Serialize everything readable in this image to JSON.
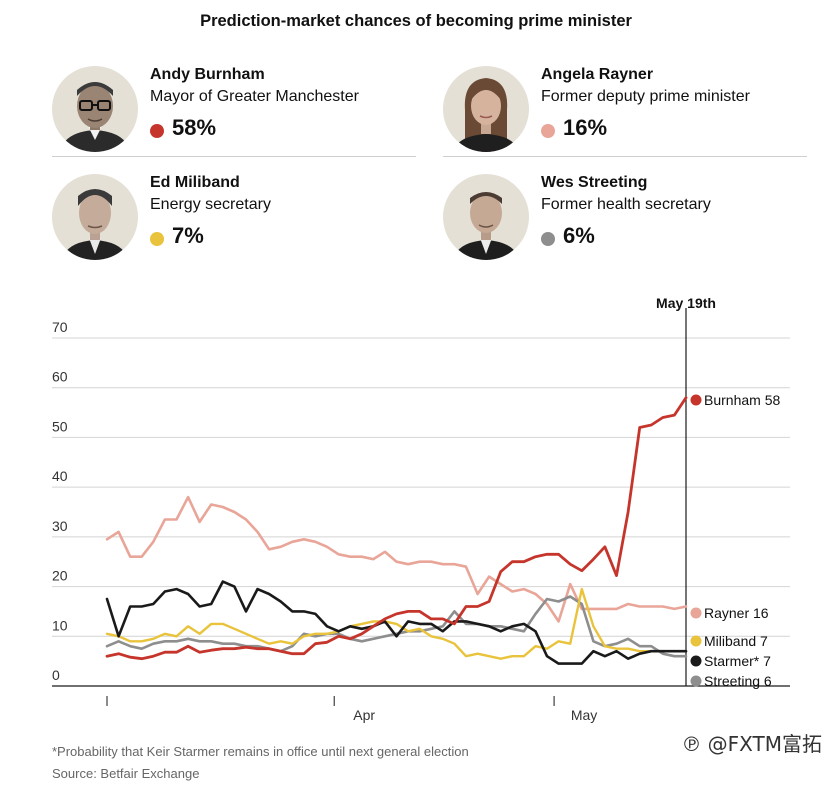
{
  "title": "Prediction-market chances of becoming prime minister",
  "candidates": [
    {
      "name": "Andy Burnham",
      "role": "Mayor of Greater Manchester",
      "pct": "58%",
      "color": "#c6352b"
    },
    {
      "name": "Angela Rayner",
      "role": "Former deputy prime minister",
      "pct": "16%",
      "color": "#e8a598"
    },
    {
      "name": "Ed Miliband",
      "role": "Energy secretary",
      "pct": "7%",
      "color": "#e9c33c"
    },
    {
      "name": "Wes Streeting",
      "role": "Former health secretary",
      "pct": "6%",
      "color": "#8e8e8e"
    }
  ],
  "chart_data": {
    "type": "line",
    "title": "",
    "xlabel": "",
    "ylabel": "",
    "ylim": [
      0,
      70
    ],
    "yticks": [
      "70",
      "60",
      "50",
      "40",
      "30",
      "20",
      "10",
      "0"
    ],
    "yticks_values": [
      70,
      60,
      50,
      40,
      30,
      20,
      10,
      0
    ],
    "x_start": "Mar 1",
    "x_end": "May 19",
    "xticks": [
      {
        "label": "Apr",
        "date": "Apr 1"
      },
      {
        "label": "May",
        "date": "May 1"
      }
    ],
    "marker_label": "May 19th",
    "marker_date": "May 19",
    "grid": true,
    "series": [
      {
        "name": "Burnham",
        "end_label": "Burnham 58",
        "color": "#c6352b",
        "width": 2.8,
        "values": [
          6,
          6.5,
          5.8,
          5.5,
          6,
          6.8,
          6.8,
          8,
          6.8,
          7.2,
          7.5,
          7.5,
          7.8,
          7.5,
          7.5,
          7,
          6.5,
          6.5,
          8.5,
          8.8,
          10,
          9.5,
          10.5,
          12,
          13.5,
          14.5,
          15,
          15,
          13.5,
          13.5,
          12.5,
          16,
          16,
          17,
          23,
          25,
          25,
          26,
          26.5,
          26.5,
          24.5,
          23.2,
          25.5,
          28,
          22.2,
          35,
          52,
          52.5,
          54,
          54.5,
          58
        ]
      },
      {
        "name": "Rayner",
        "end_label": "Rayner 16",
        "color": "#e8a598",
        "width": 2.6,
        "values": [
          29.5,
          31,
          26,
          26,
          29,
          33.5,
          33.5,
          38,
          33,
          36.5,
          36,
          35,
          33.5,
          31,
          27.5,
          28,
          29,
          29.5,
          29,
          28,
          26.5,
          26,
          26,
          25.5,
          27,
          25,
          24.5,
          25,
          25,
          24.5,
          24.5,
          24,
          18.5,
          22,
          20.5,
          19,
          19.5,
          18.5,
          16.5,
          13,
          20.5,
          15.5,
          15.5,
          15.5,
          15.5,
          16.5,
          16,
          16,
          16,
          15.5,
          16
        ]
      },
      {
        "name": "Starmer",
        "end_label": "Starmer* 7",
        "color": "#1a1a1a",
        "width": 2.6,
        "values": [
          17.5,
          10,
          16,
          16,
          16.5,
          19,
          19.5,
          18.5,
          16,
          16.5,
          21,
          20,
          15,
          19.5,
          18.5,
          17,
          15,
          15,
          14.5,
          12,
          11,
          12,
          11.5,
          12,
          13,
          10,
          13,
          12.5,
          12.5,
          11,
          13,
          13,
          12.5,
          12,
          11,
          12,
          12.5,
          11,
          6,
          4.5,
          4.5,
          4.5,
          7,
          6,
          7,
          5.5,
          6.5,
          7,
          7,
          7,
          7
        ]
      },
      {
        "name": "Miliband",
        "end_label": "Miliband 7",
        "color": "#e9c33c",
        "width": 2.4,
        "values": [
          10.5,
          10,
          9,
          9,
          9.5,
          10.5,
          10,
          12,
          10.5,
          12.5,
          12.5,
          11.5,
          10.5,
          9.5,
          8.5,
          9,
          8.5,
          10,
          10.5,
          10.5,
          11,
          12,
          12.5,
          13,
          13,
          12.5,
          11,
          11.5,
          10,
          9.5,
          8.5,
          6,
          6.5,
          6,
          5.5,
          6,
          6,
          8,
          7.5,
          9,
          8.5,
          19.5,
          12,
          8,
          7.5,
          7.5,
          7,
          7,
          7,
          7,
          7
        ]
      },
      {
        "name": "Streeting",
        "end_label": "Streeting 6",
        "color": "#8e8e8e",
        "width": 2.6,
        "values": [
          8,
          9,
          8,
          7.5,
          8.5,
          9,
          9,
          9.5,
          9,
          9,
          8.5,
          8.5,
          8,
          8,
          7.5,
          7,
          8,
          10.5,
          10,
          10.5,
          10.5,
          9.5,
          9,
          9.5,
          10,
          10.5,
          11,
          11,
          11.5,
          12,
          15,
          12.5,
          12.5,
          12,
          12,
          11.5,
          11,
          14.5,
          17.5,
          17,
          18,
          16.5,
          9,
          8,
          8.5,
          9.5,
          8,
          8,
          6.5,
          6,
          6
        ]
      }
    ],
    "end_dot_series": [
      "Burnham"
    ]
  },
  "footnote": "*Probability that Keir Starmer remains in office until next general election",
  "source": "Source: Betfair Exchange",
  "watermark": "℗ @FXTM富拓"
}
